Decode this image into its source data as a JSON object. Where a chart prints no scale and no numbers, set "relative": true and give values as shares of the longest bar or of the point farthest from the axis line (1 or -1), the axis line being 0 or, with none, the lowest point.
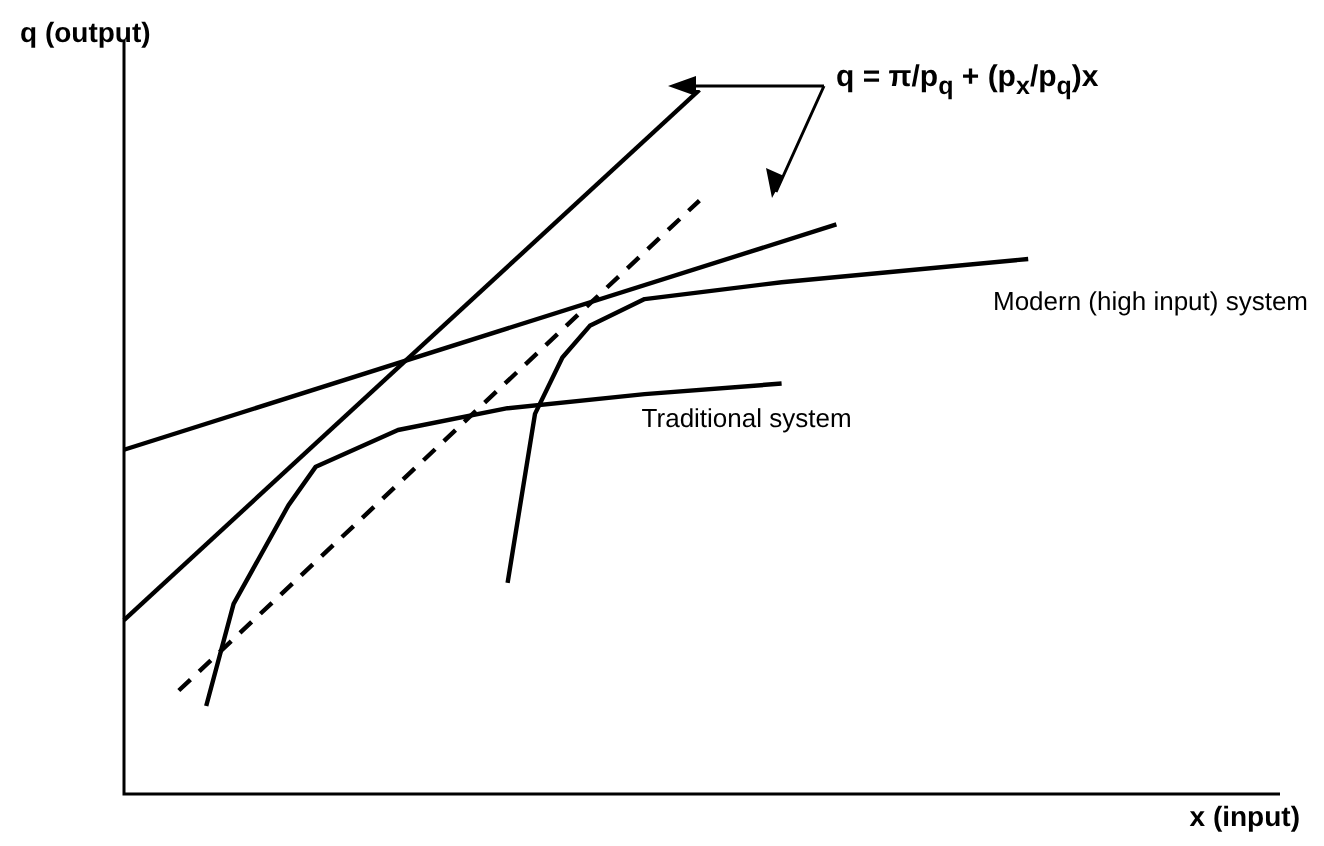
{
  "chart_data": {
    "type": "line",
    "relative": true,
    "xlabel": "x (input)",
    "ylabel": "q (output)",
    "legend": false,
    "marker": "none",
    "annotations": [
      "q = π/p$_{q}$ + (p$_{x}$/p$_{q}$)x"
    ],
    "categories": [
      null,
      null,
      null,
      null,
      null,
      null,
      null,
      null,
      null,
      null,
      null,
      null,
      null,
      null,
      null,
      null,
      null,
      null,
      null,
      null,
      null,
      null,
      null,
      null,
      null,
      null,
      null,
      null,
      null,
      null,
      null,
      null,
      null,
      null,
      null,
      null,
      null,
      null,
      null,
      null,
      null
    ],
    "series": [
      {
        "color": "#000000",
        "line_style": "solid",
        "values": [
          0.247,
          null,
          null,
          null,
          null,
          null,
          null,
          null,
          null,
          null,
          null,
          null,
          null,
          null,
          null,
          null,
          null,
          null,
          null,
          null,
          null,
          1,
          null,
          null,
          null,
          null,
          null,
          null,
          null,
          null,
          null,
          null,
          null,
          null,
          null,
          null,
          null,
          null,
          null,
          null,
          null
        ]
      },
      {
        "color": "#000000",
        "line_style": "dashed",
        "values": [
          null,
          null,
          0.147,
          null,
          null,
          null,
          null,
          null,
          null,
          null,
          null,
          null,
          null,
          null,
          null,
          null,
          null,
          null,
          null,
          null,
          null,
          0.843,
          null,
          null,
          null,
          null,
          null,
          null,
          null,
          null,
          null,
          null,
          null,
          null,
          null,
          null,
          null,
          null,
          null,
          null,
          null
        ]
      },
      {
        "color": "#000000",
        "line_style": "solid",
        "values": [
          0.489,
          null,
          null,
          null,
          null,
          null,
          null,
          null,
          null,
          null,
          null,
          null,
          null,
          null,
          null,
          null,
          null,
          null,
          null,
          null,
          null,
          null,
          null,
          null,
          null,
          null,
          0.809,
          null,
          null,
          null,
          null,
          null,
          null,
          null,
          null,
          null,
          null,
          null,
          null,
          null,
          null
        ]
      },
      {
        "name": "Traditional system",
        "color": "#000000",
        "line_style": "solid",
        "values": [
          null,
          null,
          null,
          0.125,
          0.27,
          null,
          0.41,
          0.465,
          null,
          null,
          0.517,
          null,
          null,
          null,
          0.548,
          null,
          null,
          null,
          null,
          0.568,
          null,
          null,
          null,
          null,
          0.583,
          null,
          null,
          null,
          null,
          null,
          null,
          null,
          null,
          null,
          null,
          null,
          null,
          null,
          null,
          null,
          null
        ]
      },
      {
        "name": "Modern (high input) system",
        "color": "#000000",
        "line_style": "solid",
        "values": [
          null,
          null,
          null,
          null,
          null,
          null,
          null,
          null,
          null,
          null,
          null,
          null,
          null,
          null,
          0.3,
          0.54,
          0.62,
          0.665,
          null,
          0.703,
          null,
          null,
          null,
          null,
          0.727,
          null,
          null,
          null,
          null,
          null,
          null,
          null,
          null,
          0.76,
          null,
          null,
          null,
          null,
          null,
          null,
          null
        ]
      }
    ]
  }
}
